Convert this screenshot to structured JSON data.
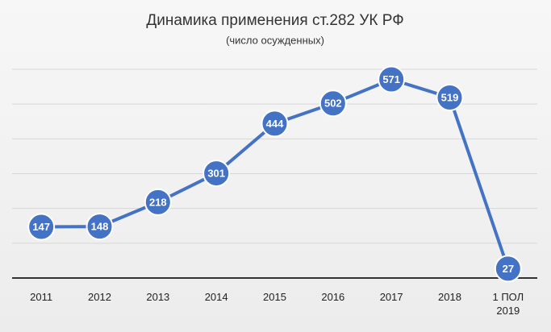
{
  "chart_data": {
    "type": "line",
    "title": "Динамика применения ст.282 УК РФ",
    "subtitle": "(число осужденных)",
    "categories": [
      "2011",
      "2012",
      "2013",
      "2014",
      "2015",
      "2016",
      "2017",
      "2018",
      "1 ПОЛ 2019"
    ],
    "values": [
      147,
      148,
      218,
      301,
      444,
      502,
      571,
      519,
      27
    ],
    "color": "#4472c4",
    "ylim": [
      0,
      600
    ],
    "yticks": [
      0,
      100,
      200,
      300,
      400,
      500,
      600
    ],
    "grid": true
  }
}
